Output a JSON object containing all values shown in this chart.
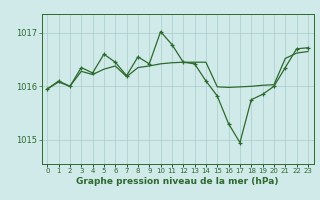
{
  "hours": [
    0,
    1,
    2,
    3,
    4,
    5,
    6,
    7,
    8,
    9,
    10,
    11,
    12,
    13,
    14,
    15,
    16,
    17,
    18,
    19,
    20,
    21,
    22,
    23
  ],
  "line1_values": [
    1015.95,
    1016.08,
    1016.0,
    1016.28,
    1016.22,
    1016.32,
    1016.38,
    1016.18,
    1016.35,
    1016.38,
    1016.42,
    1016.44,
    1016.45,
    1016.45,
    1016.45,
    1015.99,
    1015.98,
    1015.99,
    1016.0,
    1016.02,
    1016.03,
    1016.52,
    1016.62,
    1016.65
  ],
  "line2_values": [
    1015.95,
    1016.1,
    1016.0,
    1016.35,
    1016.25,
    1016.6,
    1016.45,
    1016.2,
    1016.55,
    1016.42,
    1017.02,
    1016.78,
    1016.45,
    1016.42,
    1016.1,
    1015.82,
    1015.3,
    1014.95,
    1015.75,
    1015.85,
    1016.0,
    1016.35,
    1016.7,
    1016.72
  ],
  "line_color": "#2d6a2d",
  "bg_color": "#d0eaea",
  "grid_color": "#aacccc",
  "ylim_min": 1014.55,
  "ylim_max": 1017.35,
  "yticks": [
    1015,
    1016,
    1017
  ],
  "xlabel": "Graphe pression niveau de la mer (hPa)"
}
